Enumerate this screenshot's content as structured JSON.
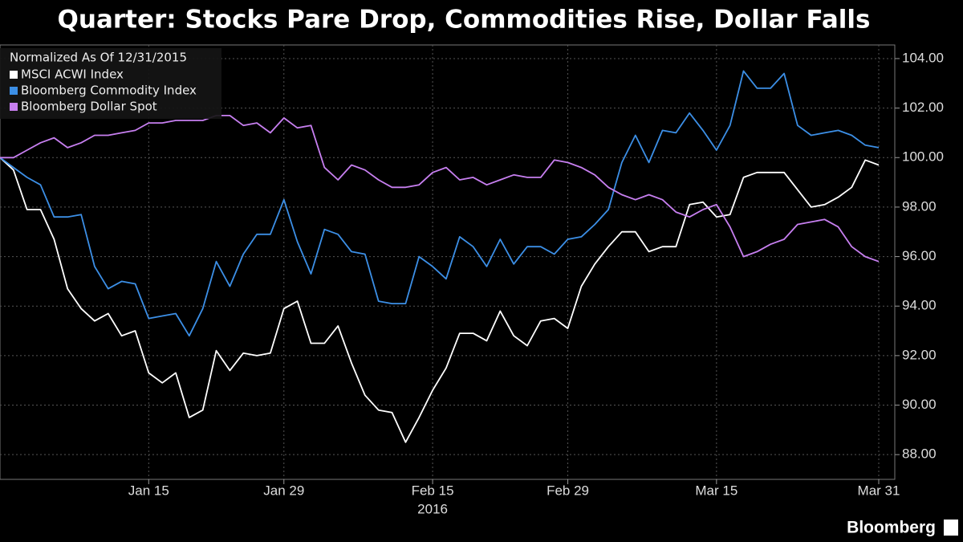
{
  "chart_data": {
    "type": "line",
    "title": "Quarter: Stocks Pare Drop, Commodities Rise, Dollar Falls",
    "legend_title": "Normalized As Of 12/31/2015",
    "xlabel": "2016",
    "source": "Bloomberg",
    "categories": [
      null,
      null,
      null,
      null,
      null,
      null,
      null,
      null,
      null,
      null,
      null,
      "Jan 15",
      null,
      null,
      null,
      null,
      null,
      null,
      null,
      null,
      null,
      "Jan 29",
      null,
      null,
      null,
      null,
      null,
      null,
      null,
      null,
      null,
      null,
      "Feb 15",
      null,
      null,
      null,
      null,
      null,
      null,
      null,
      null,
      null,
      "Feb 29",
      null,
      null,
      null,
      null,
      null,
      null,
      null,
      null,
      null,
      null,
      "Mar 15",
      null,
      null,
      null,
      null,
      null,
      null,
      null,
      null,
      null,
      null,
      null,
      "Mar 31"
    ],
    "series": [
      {
        "name": "MSCI ACWI Index",
        "color": "#ffffff",
        "values": [
          100,
          99.5,
          97.9,
          97.9,
          96.7,
          94.7,
          93.9,
          93.4,
          93.7,
          92.8,
          93.0,
          91.3,
          90.9,
          91.3,
          89.5,
          89.8,
          92.2,
          91.4,
          92.1,
          92.0,
          92.1,
          93.9,
          94.2,
          92.5,
          92.5,
          93.2,
          91.7,
          90.4,
          89.8,
          89.7,
          88.5,
          89.5,
          90.6,
          91.5,
          92.9,
          92.9,
          92.6,
          93.8,
          92.8,
          92.4,
          93.4,
          93.5,
          93.1,
          94.8,
          95.7,
          96.4,
          97.0,
          97.0,
          96.2,
          96.4,
          96.4,
          98.1,
          98.2,
          97.6,
          97.7,
          99.2,
          99.4,
          99.4,
          99.4,
          98.7,
          98.0,
          98.1,
          98.4,
          98.8,
          99.9,
          99.7
        ]
      },
      {
        "name": "Bloomberg Commodity Index",
        "color": "#3c8fe6",
        "values": [
          100,
          99.6,
          99.2,
          98.9,
          97.6,
          97.6,
          97.7,
          95.6,
          94.7,
          95.0,
          94.9,
          93.5,
          93.6,
          93.7,
          92.8,
          93.9,
          95.8,
          94.8,
          96.1,
          96.9,
          96.9,
          98.3,
          96.6,
          95.3,
          97.1,
          96.9,
          96.2,
          96.1,
          94.2,
          94.1,
          94.1,
          96.0,
          95.6,
          95.1,
          96.8,
          96.4,
          95.6,
          96.7,
          95.7,
          96.4,
          96.4,
          96.1,
          96.7,
          96.8,
          97.3,
          97.9,
          99.8,
          100.9,
          99.8,
          101.1,
          101.0,
          101.8,
          101.1,
          100.3,
          101.3,
          103.5,
          102.8,
          102.8,
          103.4,
          101.3,
          100.9,
          101.0,
          101.1,
          100.9,
          100.5,
          100.4
        ]
      },
      {
        "name": "Bloomberg Dollar Spot",
        "color": "#c77ff0",
        "values": [
          100,
          100.0,
          100.3,
          100.6,
          100.8,
          100.4,
          100.6,
          100.9,
          100.9,
          101.0,
          101.1,
          101.4,
          101.4,
          101.5,
          101.5,
          101.5,
          101.7,
          101.7,
          101.3,
          101.4,
          101.0,
          101.6,
          101.2,
          101.3,
          99.6,
          99.1,
          99.7,
          99.5,
          99.1,
          98.8,
          98.8,
          98.9,
          99.4,
          99.6,
          99.1,
          99.2,
          98.9,
          99.1,
          99.3,
          99.2,
          99.2,
          99.9,
          99.8,
          99.6,
          99.3,
          98.8,
          98.5,
          98.3,
          98.5,
          98.3,
          97.8,
          97.6,
          97.9,
          98.1,
          97.2,
          96.0,
          96.2,
          96.5,
          96.7,
          97.3,
          97.4,
          97.5,
          97.2,
          96.4,
          96.0,
          95.8
        ]
      }
    ],
    "ylim": [
      87,
      104.55
    ],
    "yticks": [
      {
        "value": 88,
        "label": "88.00"
      },
      {
        "value": 90,
        "label": "90.00"
      },
      {
        "value": 92,
        "label": "92.00"
      },
      {
        "value": 94,
        "label": "94.00"
      },
      {
        "value": 96,
        "label": "96.00"
      },
      {
        "value": 98,
        "label": "98.00"
      },
      {
        "value": 100,
        "label": "100.00"
      },
      {
        "value": 102,
        "label": "102.00"
      },
      {
        "value": 104,
        "label": "104.00"
      }
    ],
    "grid": true
  }
}
